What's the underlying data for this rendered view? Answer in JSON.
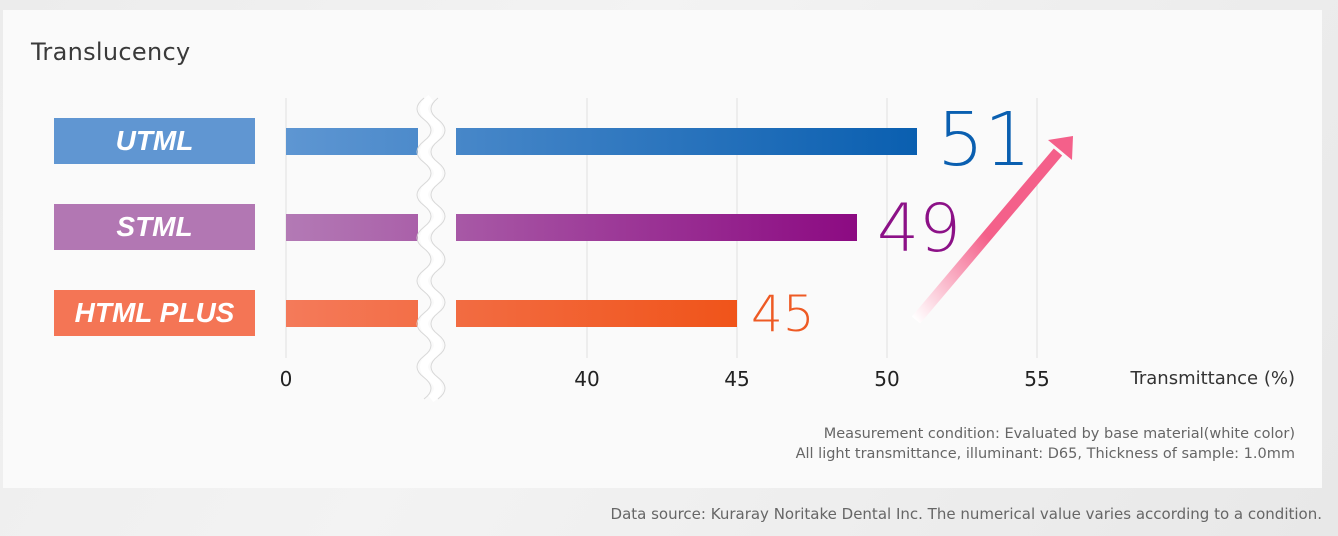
{
  "chart_data": {
    "type": "bar",
    "orientation": "horizontal",
    "title": "Translucency",
    "categories": [
      "UTML",
      "STML",
      "HTML PLUS"
    ],
    "values": [
      51,
      49,
      45
    ],
    "value_labels": [
      "51",
      "49",
      "45"
    ],
    "xlabel": "Transmittance (%)",
    "ylabel": "",
    "x_ticks": [
      0,
      40,
      45,
      50,
      55
    ],
    "x_tick_labels": [
      "0",
      "40",
      "45",
      "50",
      "55"
    ],
    "axis_break": [
      0,
      35
    ],
    "xlim": [
      0,
      55
    ],
    "grid": true,
    "colors": {
      "UTML": {
        "label": "#6096d2",
        "start": "#5e96d2",
        "end": "#0a5fb0",
        "text": "#0a5fb0"
      },
      "STML": {
        "label": "#b277b3",
        "start": "#b37ab5",
        "end": "#8c0a82",
        "text": "#8c1187"
      },
      "HTML PLUS": {
        "label": "#f47555",
        "start": "#f47a5a",
        "end": "#f0541a",
        "text": "#ee5a24"
      }
    },
    "trend_arrow_color": "#f4608a"
  },
  "notes": [
    "Measurement condition: Evaluated by base material(white color)",
    "All light transmittance, illuminant: D65, Thickness of sample: 1.0mm"
  ],
  "source": "Data source: Kuraray Noritake Dental Inc. The numerical value varies according to a condition."
}
